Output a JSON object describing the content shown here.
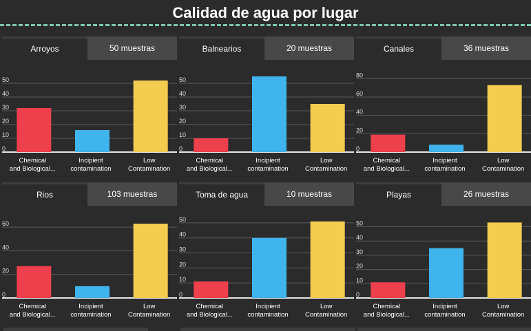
{
  "title": "Calidad de agua por lugar",
  "colors": {
    "chemical": "#ee3f4c",
    "incipient": "#40b4ec",
    "low": "#f4cc50"
  },
  "categories": [
    "Chemical and Biological...",
    "Incipient contamination",
    "Low Contamination"
  ],
  "panels": [
    {
      "name": "Arroyos",
      "count": "50 muestras"
    },
    {
      "name": "Balnearios",
      "count": "20 muestras"
    },
    {
      "name": "Canales",
      "count": "36 muestras"
    },
    {
      "name": "Rios",
      "count": "103 muestras"
    },
    {
      "name": "Toma de agua",
      "count": "10 muestras"
    },
    {
      "name": "Playas",
      "count": "26 muestras"
    }
  ],
  "chart_data": [
    {
      "type": "bar",
      "categories": [
        "Chemical and Biological...",
        "Incipient contamination",
        "Low Contamination"
      ],
      "values": [
        32,
        16,
        52
      ],
      "ylim": [
        0,
        60
      ],
      "yticks": [
        0,
        10,
        20,
        30,
        40,
        50
      ]
    },
    {
      "type": "bar",
      "categories": [
        "Chemical and Biological...",
        "Incipient contamination",
        "Low Contamination"
      ],
      "values": [
        10,
        55,
        35
      ],
      "ylim": [
        0,
        60
      ],
      "yticks": [
        0,
        10,
        20,
        30,
        40,
        50
      ]
    },
    {
      "type": "bar",
      "categories": [
        "Chemical and Biological...",
        "Incipient contamination",
        "Low Contamination"
      ],
      "values": [
        19,
        8,
        73
      ],
      "ylim": [
        0,
        90
      ],
      "yticks": [
        0,
        20,
        40,
        60,
        80
      ]
    },
    {
      "type": "bar",
      "categories": [
        "Chemical and Biological...",
        "Incipient contamination",
        "Low Contamination"
      ],
      "values": [
        27,
        10,
        63
      ],
      "ylim": [
        0,
        70
      ],
      "yticks": [
        0,
        20,
        40,
        60
      ]
    },
    {
      "type": "bar",
      "categories": [
        "Chemical and Biological...",
        "Incipient contamination",
        "Low Contamination"
      ],
      "values": [
        11,
        40,
        51
      ],
      "ylim": [
        0,
        55
      ],
      "yticks": [
        0,
        10,
        20,
        30,
        40,
        50
      ]
    },
    {
      "type": "bar",
      "categories": [
        "Chemical and Biological...",
        "Incipient contamination",
        "Low Contamination"
      ],
      "values": [
        11,
        35,
        53
      ],
      "ylim": [
        0,
        58
      ],
      "yticks": [
        0,
        10,
        20,
        30,
        40,
        50
      ]
    }
  ]
}
